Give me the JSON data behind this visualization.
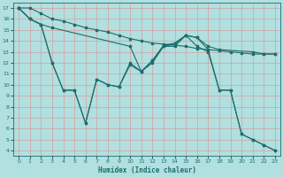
{
  "xlabel": "Humidex (Indice chaleur)",
  "bg_color": "#b2dfdf",
  "grid_color": "#d4a0a0",
  "line_color": "#1a6e6e",
  "xlim": [
    -0.5,
    23.5
  ],
  "ylim": [
    3.5,
    17.5
  ],
  "xticks": [
    0,
    1,
    2,
    3,
    4,
    5,
    6,
    7,
    8,
    9,
    10,
    11,
    12,
    13,
    14,
    15,
    16,
    17,
    18,
    19,
    20,
    21,
    22,
    23
  ],
  "yticks": [
    4,
    5,
    6,
    7,
    8,
    9,
    10,
    11,
    12,
    13,
    14,
    15,
    16,
    17
  ],
  "line1_x": [
    0,
    1,
    2,
    3,
    4,
    5,
    6,
    7,
    8,
    9,
    10,
    11,
    12,
    13,
    14,
    15,
    16,
    17,
    18,
    19,
    20,
    21,
    22,
    23
  ],
  "line1_y": [
    17,
    17,
    16.5,
    16,
    15.8,
    15.5,
    15.2,
    15.0,
    14.8,
    14.5,
    14.2,
    14.0,
    13.8,
    13.7,
    13.6,
    13.5,
    13.3,
    13.2,
    13.1,
    13.0,
    12.9,
    12.8,
    12.8,
    12.8
  ],
  "line2_x": [
    0,
    1,
    2,
    3,
    10,
    11,
    12,
    13,
    14,
    15,
    16,
    17,
    18,
    21,
    22,
    23
  ],
  "line2_y": [
    17,
    16,
    15.5,
    15.2,
    13.5,
    11.2,
    12.2,
    13.6,
    13.8,
    14.5,
    14.3,
    13.5,
    13.2,
    13.0,
    12.8,
    12.8
  ],
  "line3_x": [
    0,
    1,
    2,
    3,
    4,
    5,
    6,
    7,
    8,
    9,
    10,
    11,
    12,
    13,
    14,
    15,
    16,
    17,
    18,
    19,
    20,
    21,
    22,
    23
  ],
  "line3_y": [
    17,
    16,
    15.5,
    12,
    9.5,
    9.5,
    6.5,
    10.5,
    10,
    9.8,
    11.8,
    11.2,
    12.2,
    13.5,
    13.7,
    14.5,
    14.3,
    13.2,
    9.5,
    9.5,
    5.5,
    5.0,
    4.5,
    4.0
  ],
  "line4_x": [
    0,
    1,
    2,
    3,
    4,
    5,
    6,
    7,
    8,
    9,
    10,
    11,
    12,
    13,
    14,
    15,
    16,
    17,
    18,
    19,
    20,
    21,
    22,
    23
  ],
  "line4_y": [
    17,
    16,
    15.5,
    12,
    9.5,
    9.5,
    6.5,
    10.5,
    10,
    9.8,
    12,
    11.2,
    12,
    13.5,
    13.5,
    14.5,
    13.5,
    13.0,
    9.5,
    9.5,
    5.5,
    5.0,
    4.5,
    4.0
  ]
}
